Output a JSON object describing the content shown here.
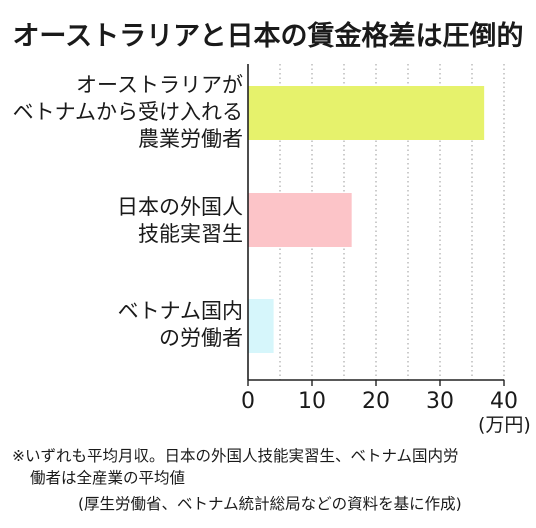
{
  "chart_data": {
    "type": "bar",
    "orientation": "horizontal",
    "title": "オーストラリアと日本の賃金格差は圧倒的",
    "categories": [
      [
        "オーストラリアが",
        "ベトナムから受け入れる",
        "農業労働者"
      ],
      [
        "日本の外国人",
        "技能実習生"
      ],
      [
        "ベトナム国内",
        "の労働者"
      ]
    ],
    "values": [
      36.9,
      16.2,
      4.0
    ],
    "colors": [
      "#e6f26c",
      "#fcc4c8",
      "#d6f6fb"
    ],
    "xlim": [
      0,
      40
    ],
    "xticks": [
      0,
      10,
      20,
      30,
      40
    ],
    "xlabel": "(万円)",
    "grid": "vertical-dotted"
  },
  "notes": {
    "line1": "※いずれも平均月収。日本の外国人技能実習生、ベトナム国内労",
    "line2": "働者は全産業の平均値",
    "line3": "(厚生労働省、ベトナム統計総局などの資料を基に作成)"
  }
}
